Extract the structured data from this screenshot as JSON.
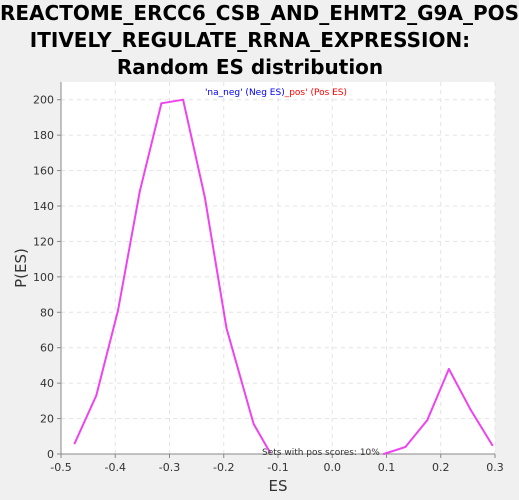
{
  "chart_data": {
    "type": "line",
    "title_lines": [
      "REACTOME_ERCC6_CSB_AND_EHMT2_G9A_POS",
      "ITIVELY_REGULATE_RRNA_EXPRESSION:",
      "Random ES distribution"
    ],
    "xlabel": "ES",
    "ylabel": "P(ES)",
    "xlim": [
      -0.5,
      0.3
    ],
    "ylim": [
      0,
      210
    ],
    "xticks": [
      -0.5,
      -0.4,
      -0.3,
      -0.2,
      -0.1,
      0.0,
      0.1,
      0.2,
      0.3
    ],
    "xtick_labels": [
      "-0.5",
      "-0.4",
      "-0.3",
      "-0.2",
      "-0.1",
      "0.0",
      "0.1",
      "0.2",
      "0.3"
    ],
    "yticks": [
      0,
      20,
      40,
      60,
      80,
      100,
      120,
      140,
      160,
      180,
      200
    ],
    "grid": true,
    "legend": {
      "neg_label": "'na_neg' (Neg ES)",
      "sep": "_",
      "pos_label": "pos' (Pos ES)",
      "neg_color": "#0000ff",
      "pos_color": "#ff0000",
      "placement": "top-center"
    },
    "annotation": "Sets with pos scores: 10%",
    "line_color": "#ee44ee",
    "series": [
      {
        "x": [
          -0.475,
          -0.435,
          -0.395,
          -0.355,
          -0.315,
          -0.275,
          -0.235,
          -0.195,
          -0.145,
          -0.115
        ],
        "y": [
          6,
          33,
          81,
          148,
          198,
          200,
          145,
          71,
          17,
          1
        ]
      },
      {
        "x": [
          0.095,
          0.135,
          0.175,
          0.215,
          0.255,
          0.295
        ],
        "y": [
          0,
          4,
          19,
          48,
          25,
          5
        ]
      }
    ]
  }
}
